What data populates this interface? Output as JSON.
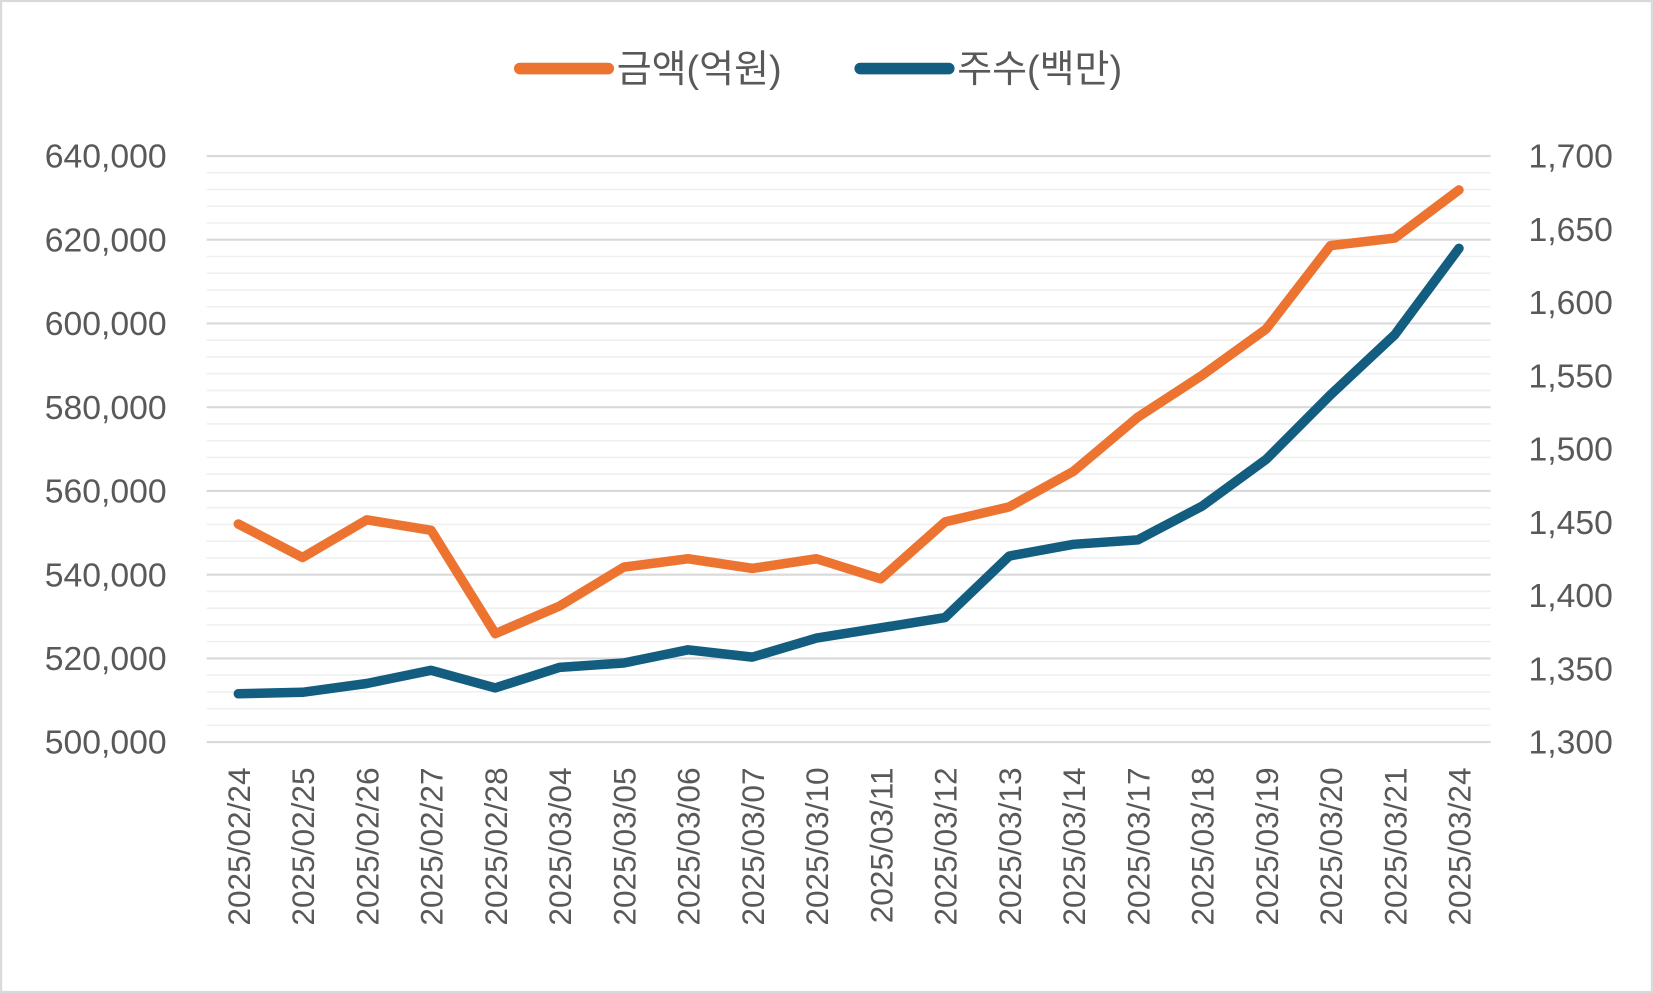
{
  "chart_data": {
    "type": "line",
    "title": "",
    "categories": [
      "2025/02/24",
      "2025/02/25",
      "2025/02/26",
      "2025/02/27",
      "2025/02/28",
      "2025/03/04",
      "2025/03/05",
      "2025/03/06",
      "2025/03/07",
      "2025/03/10",
      "2025/03/11",
      "2025/03/12",
      "2025/03/13",
      "2025/03/14",
      "2025/03/17",
      "2025/03/18",
      "2025/03/19",
      "2025/03/20",
      "2025/03/21",
      "2025/03/24"
    ],
    "series": [
      {
        "name": "금액(억원)",
        "axis": "left",
        "color": "#ED7430",
        "values": [
          552100,
          544100,
          553100,
          550600,
          525900,
          532500,
          541800,
          543800,
          541500,
          543800,
          539000,
          552600,
          556200,
          564700,
          577600,
          587600,
          598700,
          618600,
          620400,
          631900
        ]
      },
      {
        "name": "주수(백만)",
        "axis": "right",
        "color": "#135E80",
        "values": [
          1333,
          1334,
          1340,
          1349,
          1337,
          1351,
          1354,
          1363,
          1358,
          1371,
          1378,
          1385,
          1427,
          1435,
          1438,
          1461,
          1493,
          1537,
          1578,
          1637
        ]
      }
    ],
    "left_axis": {
      "ylim": [
        500000,
        640000
      ],
      "ticks": [
        "500,000",
        "520,000",
        "540,000",
        "560,000",
        "580,000",
        "600,000",
        "620,000",
        "640,000"
      ]
    },
    "right_axis": {
      "ylim": [
        1300,
        1700
      ],
      "ticks": [
        "1,300",
        "1,350",
        "1,400",
        "1,450",
        "1,500",
        "1,550",
        "1,600",
        "1,650",
        "1,700"
      ]
    },
    "grid": true,
    "legend": "top"
  }
}
